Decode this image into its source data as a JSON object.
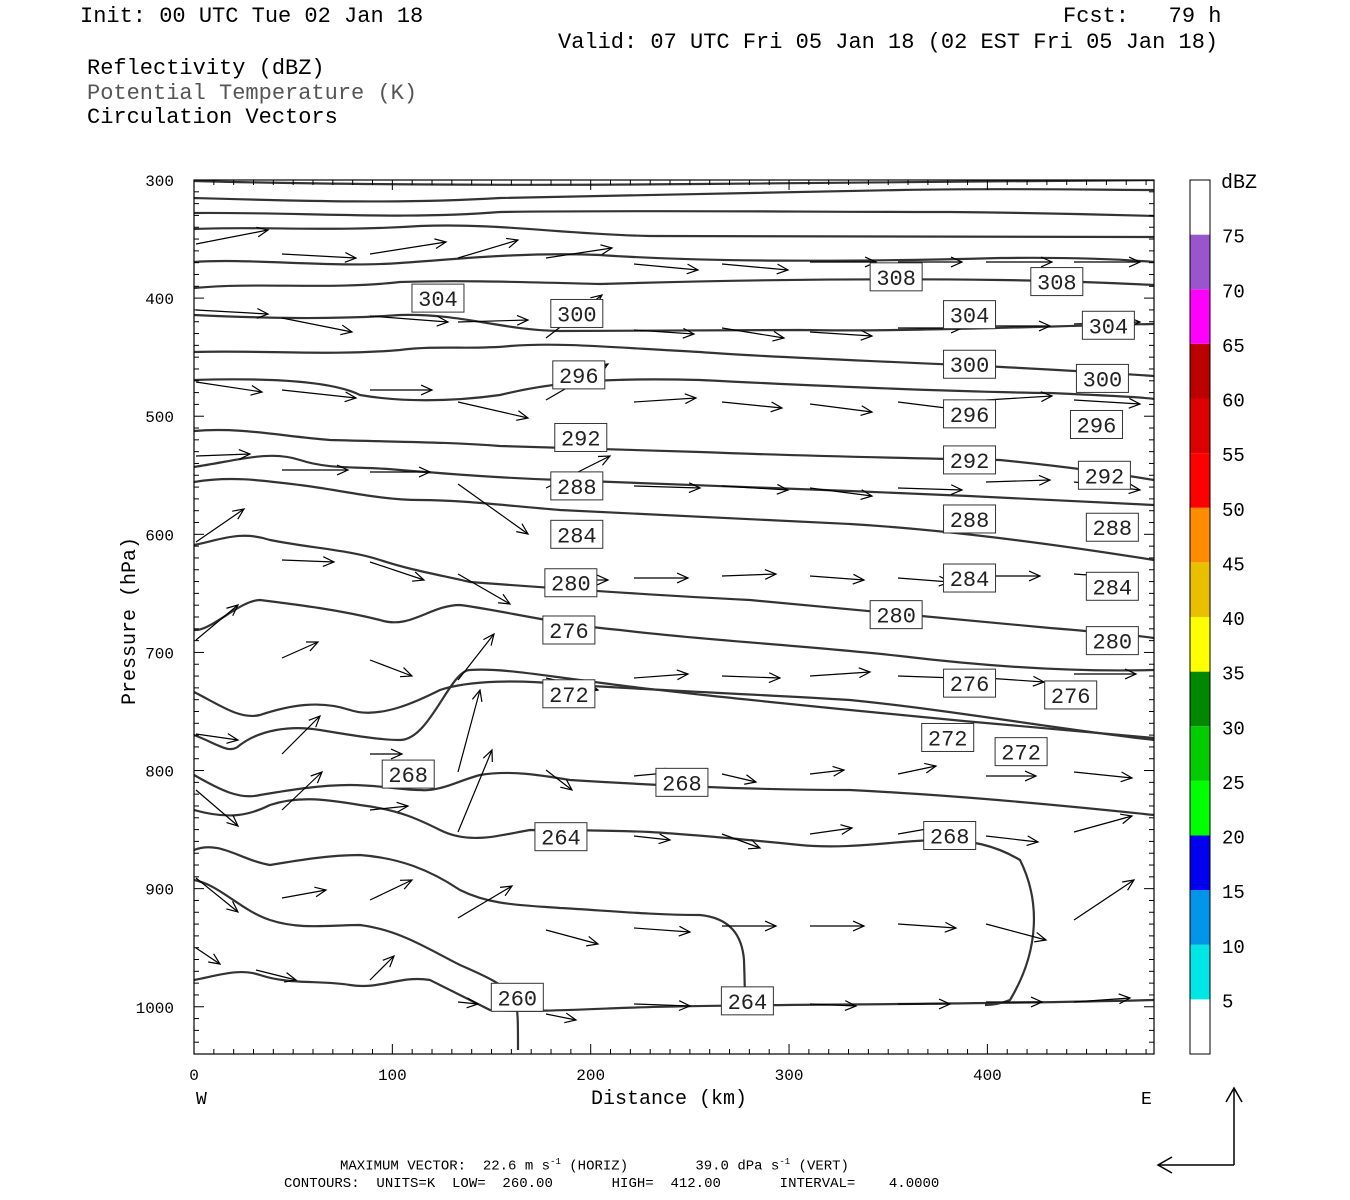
{
  "header": {
    "init": "Init: 00 UTC Tue 02 Jan 18",
    "fcst": "Fcst:   79 h",
    "valid": "Valid: 07 UTC Fri 05 Jan 18 (02 EST Fri 05 Jan 18)"
  },
  "legend_lines": {
    "reflectivity": "Reflectivity (dBZ)",
    "theta": "Potential Temperature (K)",
    "vectors": "Circulation Vectors"
  },
  "colorbar": {
    "title": "dBZ",
    "labels": [
      "5",
      "10",
      "15",
      "20",
      "25",
      "30",
      "35",
      "40",
      "45",
      "50",
      "55",
      "60",
      "65",
      "70",
      "75"
    ],
    "colors": [
      "#ffffff",
      "#00e5e5",
      "#0095e8",
      "#0000ee",
      "#00ff00",
      "#00cc00",
      "#008800",
      "#ffff00",
      "#e8c000",
      "#ff8c00",
      "#ff0000",
      "#dd0000",
      "#bb0000",
      "#ff00ff",
      "#9955cc",
      "#ffffff"
    ]
  },
  "footer": {
    "max_vector_label": "MAXIMUM VECTOR:",
    "horiz_value": "22.6 m s",
    "horiz_exp": "-1",
    "horiz_tag": "(HORIZ)",
    "vert_value": "39.0 dPa s",
    "vert_exp": "-1",
    "vert_tag": "(VERT)",
    "contours": "CONTOURS:  UNITS=K  LOW=  260.00       HIGH=  412.00       INTERVAL=    4.0000"
  },
  "chart_data": {
    "type": "cross-section",
    "xlabel": "Distance (km)",
    "ylabel": "Pressure (hPa)",
    "xlim": [
      0,
      484
    ],
    "ylim": [
      300,
      1040
    ],
    "x_ticks": [
      0,
      100,
      200,
      300,
      400
    ],
    "y_ticks": [
      300,
      400,
      500,
      600,
      700,
      800,
      900,
      1000
    ],
    "x_end_labels": {
      "left": "W",
      "right": "E"
    },
    "contour_labels": [
      {
        "value": "308",
        "x": 354,
        "p": 382
      },
      {
        "value": "308",
        "x": 435,
        "p": 386
      },
      {
        "value": "304",
        "x": 123,
        "p": 400
      },
      {
        "value": "304",
        "x": 391,
        "p": 414
      },
      {
        "value": "304",
        "x": 461,
        "p": 423
      },
      {
        "value": "300",
        "x": 193,
        "p": 413
      },
      {
        "value": "300",
        "x": 391,
        "p": 456
      },
      {
        "value": "300",
        "x": 458,
        "p": 468
      },
      {
        "value": "296",
        "x": 194,
        "p": 465
      },
      {
        "value": "296",
        "x": 391,
        "p": 498
      },
      {
        "value": "296",
        "x": 455,
        "p": 507
      },
      {
        "value": "292",
        "x": 195,
        "p": 518
      },
      {
        "value": "292",
        "x": 391,
        "p": 537
      },
      {
        "value": "292",
        "x": 459,
        "p": 550
      },
      {
        "value": "288",
        "x": 193,
        "p": 559
      },
      {
        "value": "288",
        "x": 391,
        "p": 587
      },
      {
        "value": "288",
        "x": 463,
        "p": 594
      },
      {
        "value": "284",
        "x": 193,
        "p": 600
      },
      {
        "value": "284",
        "x": 391,
        "p": 637
      },
      {
        "value": "284",
        "x": 463,
        "p": 644
      },
      {
        "value": "280",
        "x": 190,
        "p": 641
      },
      {
        "value": "280",
        "x": 354,
        "p": 668
      },
      {
        "value": "280",
        "x": 463,
        "p": 690
      },
      {
        "value": "276",
        "x": 189,
        "p": 681
      },
      {
        "value": "276",
        "x": 391,
        "p": 726
      },
      {
        "value": "276",
        "x": 442,
        "p": 736
      },
      {
        "value": "272",
        "x": 189,
        "p": 735
      },
      {
        "value": "272",
        "x": 380,
        "p": 772
      },
      {
        "value": "272",
        "x": 417,
        "p": 784
      },
      {
        "value": "268",
        "x": 108,
        "p": 803
      },
      {
        "value": "268",
        "x": 246,
        "p": 810
      },
      {
        "value": "268",
        "x": 381,
        "p": 855
      },
      {
        "value": "264",
        "x": 185,
        "p": 856
      },
      {
        "value": "264",
        "x": 279,
        "p": 995
      },
      {
        "value": "260",
        "x": 163,
        "p": 992
      }
    ],
    "max_vector": {
      "horiz": "22.6 m s-1",
      "vert": "39.0 dPa s-1"
    },
    "contours": {
      "units": "K",
      "low": 260.0,
      "high": 412.0,
      "interval": 4.0
    },
    "grid": false
  }
}
